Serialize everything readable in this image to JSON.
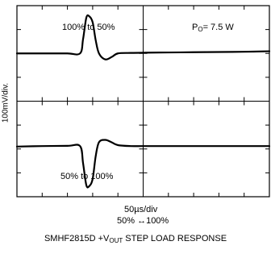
{
  "chart_data": {
    "type": "line",
    "title_prefix": "SMHF2815D +V",
    "title_sub": "OUT",
    "title_suffix": " STEP LOAD RESPONSE",
    "ylabel": "100mV/div.",
    "xlabel_line1": "50µs/div",
    "xlabel_line2": "50% ↔100%",
    "grid": {
      "x_divisions": 10,
      "y_divisions": 8
    },
    "annotations": {
      "upper_trace": "100% to 50%",
      "lower_trace": "50% to 100%",
      "power_prefix": "P",
      "power_sub": "O",
      "power_suffix": "= 7.5 W"
    },
    "series": [
      {
        "x": [
          0,
          1.0,
          2.0,
          2.5,
          2.62,
          2.75,
          2.87,
          3.0,
          3.12,
          3.25,
          3.5,
          3.75,
          4.0,
          4.5,
          5.0,
          6.0,
          7.0,
          8.0,
          9.0,
          10.0
        ],
        "y": [
          6.0,
          6.0,
          6.0,
          6.0,
          6.6,
          7.5,
          7.55,
          7.3,
          6.55,
          6.0,
          5.75,
          5.85,
          6.0,
          6.02,
          6.03,
          6.04,
          6.05,
          6.06,
          6.07,
          6.09
        ]
      },
      {
        "x": [
          0,
          1.0,
          2.0,
          2.5,
          2.62,
          2.75,
          2.87,
          3.0,
          3.12,
          3.25,
          3.5,
          3.75,
          4.0,
          4.5,
          5.0,
          6.0,
          7.0,
          8.0,
          9.0,
          10.0
        ],
        "y": [
          2.1,
          2.12,
          2.13,
          2.12,
          1.4,
          0.48,
          0.45,
          0.75,
          1.7,
          2.28,
          2.38,
          2.28,
          2.16,
          2.12,
          2.12,
          2.12,
          2.12,
          2.12,
          2.12,
          2.12
        ]
      }
    ]
  }
}
